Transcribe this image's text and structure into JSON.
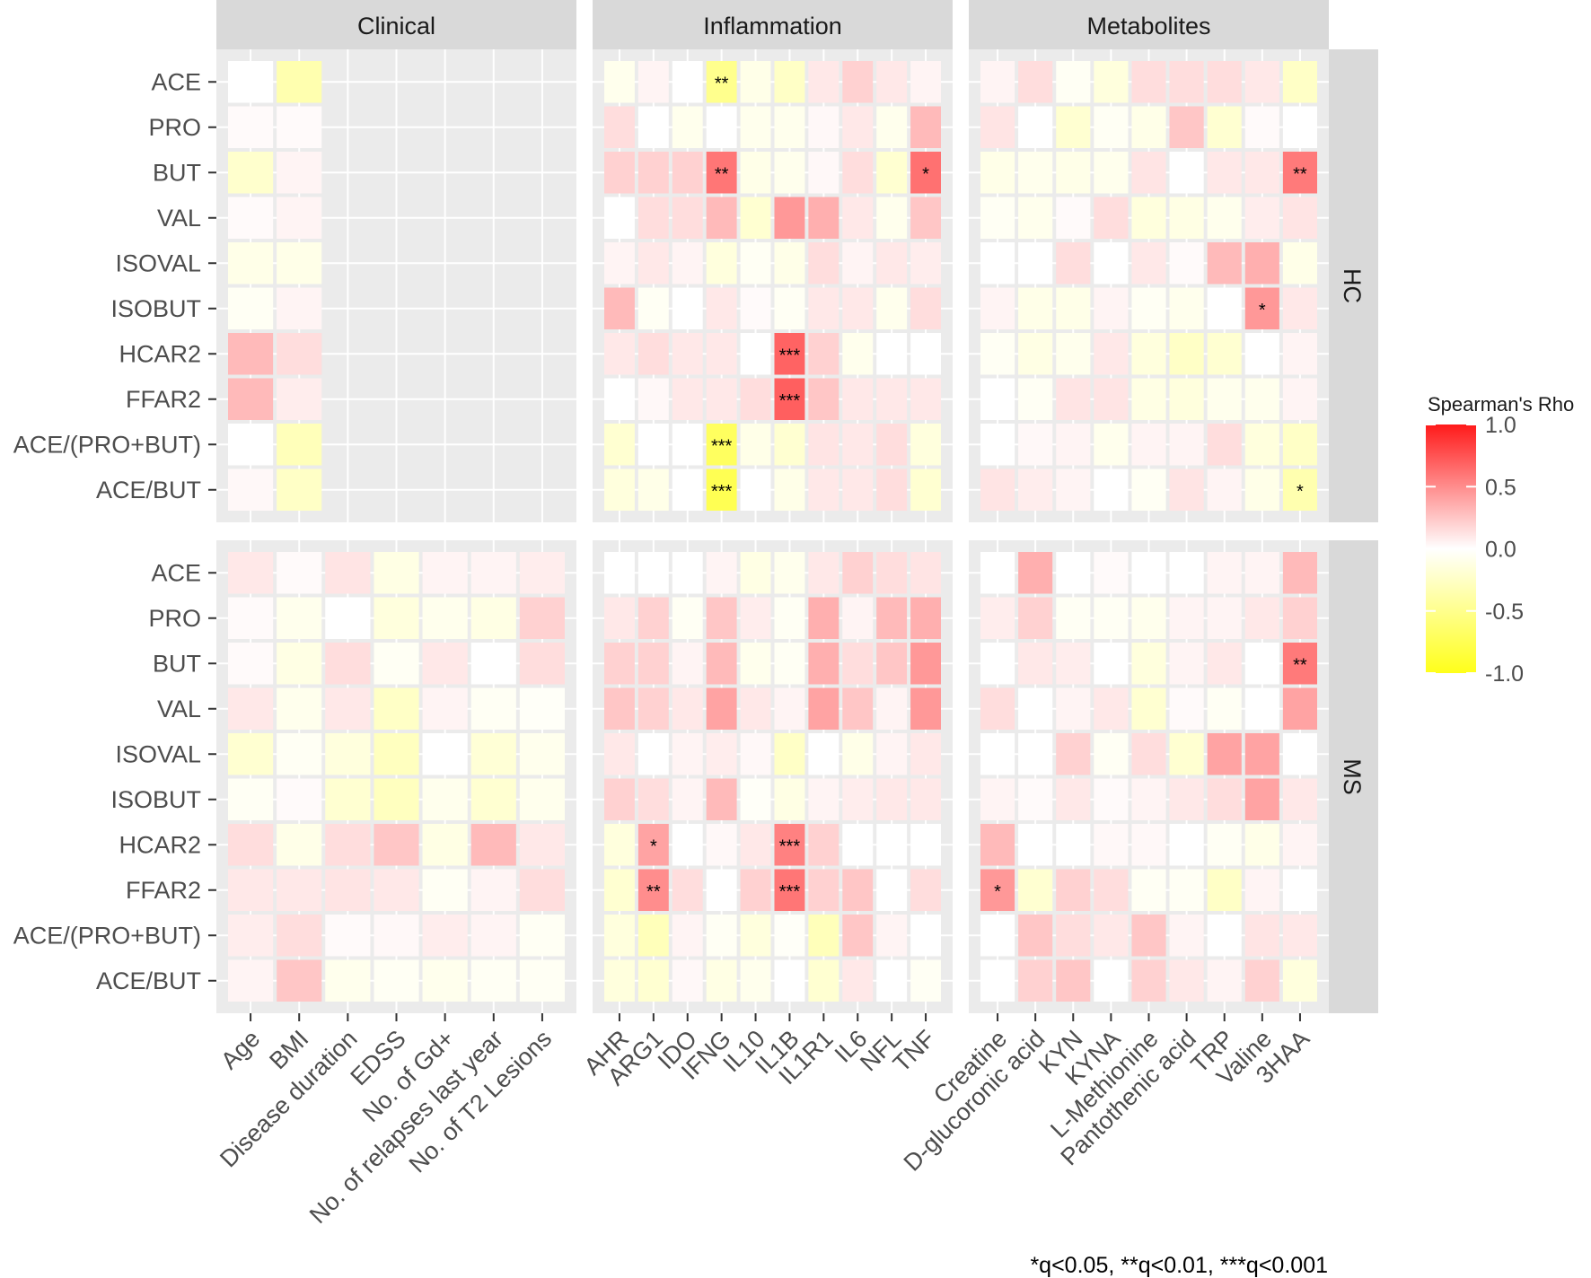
{
  "chart_data": {
    "type": "heatmap",
    "legend": {
      "title": "Spearman's Rho",
      "ticks": [
        "1.0",
        "0.5",
        "0.0",
        "-0.5",
        "-1.0"
      ],
      "tick_values": [
        1.0,
        0.5,
        0.0,
        -0.5,
        -1.0
      ],
      "range": [
        -1.0,
        1.0
      ],
      "colors": {
        "low": "#ffff1a",
        "mid": "#ffffff",
        "high": "#ff1a1a"
      },
      "placement": "right"
    },
    "caption": "*q<0.05, **q<0.01, ***q<0.001",
    "rows": [
      "ACE",
      "PRO",
      "BUT",
      "VAL",
      "ISOVAL",
      "ISOBUT",
      "HCAR2",
      "FFAR2",
      "ACE/(PRO+BUT)",
      "ACE/BUT"
    ],
    "row_panels": [
      "HC",
      "MS"
    ],
    "col_panels": [
      {
        "name": "Clinical",
        "columns": [
          "Age",
          "BMI",
          "Disease duration",
          "EDSS",
          "No. of Gd+",
          "No. of relapses last year",
          "No. of T2 Lesions"
        ]
      },
      {
        "name": "Inflammation",
        "columns": [
          "AHR",
          "ARG1",
          "IDO",
          "IFNG",
          "IL10",
          "IL1B",
          "IL1R1",
          "IL6",
          "NFL",
          "TNF"
        ]
      },
      {
        "name": "Metabolites",
        "columns": [
          "Creatine",
          "D-glucoronic acid",
          "KYN",
          "KYNA",
          "L-Methionine",
          "Pantothenic acid",
          "TRP",
          "Valine",
          "3HAA"
        ]
      }
    ],
    "values": {
      "HC": {
        "Clinical": [
          [
            0.0,
            -0.35,
            null,
            null,
            null,
            null,
            null
          ],
          [
            0.02,
            0.02,
            null,
            null,
            null,
            null,
            null
          ],
          [
            -0.22,
            0.05,
            null,
            null,
            null,
            null,
            null
          ],
          [
            0.02,
            0.05,
            null,
            null,
            null,
            null,
            null
          ],
          [
            -0.1,
            -0.1,
            null,
            null,
            null,
            null,
            null
          ],
          [
            -0.05,
            0.05,
            null,
            null,
            null,
            null,
            null
          ],
          [
            0.3,
            0.15,
            null,
            null,
            null,
            null,
            null
          ],
          [
            0.3,
            0.08,
            null,
            null,
            null,
            null,
            null
          ],
          [
            0.0,
            -0.3,
            null,
            null,
            null,
            null,
            null
          ],
          [
            0.03,
            -0.25,
            null,
            null,
            null,
            null,
            null
          ]
        ],
        "Inflammation": [
          [
            -0.08,
            0.05,
            0.0,
            -0.5,
            -0.1,
            -0.25,
            0.1,
            0.2,
            0.1,
            0.05
          ],
          [
            0.15,
            0.0,
            -0.08,
            0.0,
            -0.08,
            -0.08,
            0.03,
            0.1,
            -0.08,
            0.3
          ],
          [
            0.2,
            0.2,
            0.2,
            0.6,
            -0.1,
            -0.08,
            0.03,
            0.15,
            -0.2,
            0.62
          ],
          [
            0.0,
            0.15,
            0.15,
            0.3,
            -0.2,
            0.45,
            0.35,
            0.1,
            -0.08,
            0.25
          ],
          [
            0.05,
            0.1,
            0.05,
            -0.15,
            -0.05,
            -0.1,
            0.15,
            0.05,
            0.1,
            0.08
          ],
          [
            0.3,
            -0.05,
            0.0,
            0.1,
            0.02,
            -0.05,
            0.1,
            0.1,
            -0.08,
            0.15
          ],
          [
            0.1,
            0.15,
            0.1,
            0.1,
            0.0,
            0.68,
            0.2,
            -0.08,
            0.0,
            0.0
          ],
          [
            0.0,
            0.03,
            0.1,
            0.1,
            0.15,
            0.7,
            0.25,
            0.1,
            0.1,
            0.1
          ],
          [
            -0.2,
            0.0,
            0.0,
            -0.7,
            -0.1,
            -0.2,
            0.12,
            0.1,
            0.15,
            -0.15
          ],
          [
            -0.15,
            -0.1,
            0.0,
            -0.75,
            0.0,
            -0.1,
            0.1,
            0.1,
            0.15,
            -0.2
          ]
        ],
        "Metabolites": [
          [
            0.05,
            0.15,
            -0.05,
            -0.15,
            0.15,
            0.15,
            0.15,
            0.1,
            -0.25
          ],
          [
            0.12,
            0.0,
            -0.2,
            -0.05,
            -0.1,
            0.25,
            -0.2,
            0.02,
            0.0
          ],
          [
            -0.1,
            -0.08,
            -0.1,
            -0.08,
            0.12,
            0.0,
            0.1,
            0.1,
            0.58
          ],
          [
            -0.05,
            -0.08,
            0.02,
            0.15,
            -0.15,
            -0.12,
            -0.08,
            0.08,
            0.12
          ],
          [
            0.0,
            0.0,
            0.15,
            0.0,
            0.1,
            0.02,
            0.3,
            0.35,
            -0.1
          ],
          [
            0.05,
            -0.1,
            -0.1,
            0.05,
            -0.05,
            -0.08,
            0.0,
            0.45,
            0.1
          ],
          [
            -0.05,
            -0.12,
            -0.08,
            0.1,
            -0.15,
            -0.25,
            -0.2,
            0.0,
            0.05
          ],
          [
            0.0,
            -0.05,
            0.12,
            0.12,
            -0.12,
            -0.15,
            -0.08,
            -0.08,
            0.05
          ],
          [
            0.0,
            0.03,
            0.05,
            -0.08,
            0.05,
            0.05,
            0.15,
            -0.15,
            -0.25
          ],
          [
            0.12,
            0.08,
            0.05,
            0.0,
            -0.05,
            0.12,
            0.05,
            -0.1,
            -0.35
          ]
        ]
      },
      "MS": {
        "Clinical": [
          [
            0.1,
            0.02,
            0.12,
            -0.12,
            0.05,
            0.05,
            0.08
          ],
          [
            0.02,
            -0.08,
            0.0,
            -0.15,
            -0.08,
            -0.12,
            0.2
          ],
          [
            0.02,
            -0.12,
            0.15,
            -0.05,
            0.1,
            0.0,
            0.15
          ],
          [
            0.1,
            -0.08,
            0.1,
            -0.25,
            0.05,
            -0.05,
            -0.03
          ],
          [
            -0.2,
            -0.05,
            -0.15,
            -0.28,
            0.0,
            -0.18,
            -0.08
          ],
          [
            -0.05,
            0.02,
            -0.2,
            -0.28,
            -0.08,
            -0.2,
            -0.08
          ],
          [
            0.15,
            -0.1,
            0.15,
            0.25,
            -0.12,
            0.3,
            0.1
          ],
          [
            0.1,
            0.1,
            0.12,
            0.1,
            -0.05,
            0.05,
            0.15
          ],
          [
            0.08,
            0.15,
            0.02,
            0.03,
            0.08,
            0.05,
            -0.05
          ],
          [
            0.05,
            0.25,
            -0.08,
            -0.05,
            -0.08,
            -0.05,
            -0.05
          ]
        ],
        "Inflammation": [
          [
            0.0,
            0.0,
            0.0,
            0.05,
            -0.12,
            -0.08,
            0.1,
            0.2,
            0.15,
            0.12
          ],
          [
            0.1,
            0.2,
            -0.05,
            0.25,
            0.08,
            -0.05,
            0.35,
            0.05,
            0.3,
            0.35
          ],
          [
            0.2,
            0.2,
            0.05,
            0.3,
            -0.08,
            -0.05,
            0.35,
            0.15,
            0.25,
            0.45
          ],
          [
            0.25,
            0.2,
            0.1,
            0.4,
            0.1,
            0.05,
            0.4,
            0.25,
            0.05,
            0.45
          ],
          [
            0.1,
            0.0,
            0.05,
            0.08,
            0.03,
            -0.25,
            0.0,
            -0.1,
            0.05,
            0.1
          ],
          [
            0.2,
            0.15,
            0.05,
            0.3,
            -0.03,
            -0.12,
            0.05,
            0.08,
            0.1,
            0.1
          ],
          [
            -0.15,
            0.4,
            0.0,
            0.03,
            0.1,
            0.55,
            0.2,
            0.0,
            0.0,
            0.0
          ],
          [
            -0.2,
            0.5,
            0.15,
            0.0,
            0.2,
            0.6,
            0.2,
            0.25,
            0.0,
            0.15
          ],
          [
            -0.15,
            -0.3,
            0.05,
            -0.05,
            -0.15,
            -0.03,
            -0.3,
            0.25,
            0.05,
            0.0
          ],
          [
            -0.15,
            -0.2,
            0.03,
            -0.12,
            -0.08,
            0.0,
            -0.2,
            0.1,
            0.0,
            -0.05
          ]
        ],
        "Metabolites": [
          [
            0.0,
            0.35,
            0.0,
            0.02,
            0.0,
            0.0,
            0.05,
            0.05,
            0.3
          ],
          [
            0.08,
            0.2,
            -0.05,
            -0.05,
            -0.08,
            0.05,
            0.05,
            0.1,
            0.2
          ],
          [
            0.0,
            0.1,
            0.08,
            0.0,
            -0.15,
            0.05,
            0.1,
            0.0,
            0.58
          ],
          [
            0.15,
            0.0,
            0.05,
            0.1,
            -0.2,
            0.02,
            -0.05,
            0.0,
            0.4
          ],
          [
            0.0,
            0.0,
            0.2,
            -0.05,
            0.15,
            -0.2,
            0.4,
            0.4,
            0.0
          ],
          [
            0.05,
            0.02,
            0.1,
            0.02,
            0.05,
            0.1,
            0.15,
            0.4,
            0.1
          ],
          [
            0.3,
            0.0,
            0.0,
            0.03,
            0.03,
            0.0,
            -0.05,
            -0.1,
            0.05
          ],
          [
            0.45,
            -0.2,
            0.2,
            0.15,
            -0.05,
            -0.05,
            -0.25,
            0.05,
            0.0
          ],
          [
            0.0,
            0.25,
            0.15,
            0.1,
            0.25,
            0.05,
            0.0,
            0.12,
            0.1
          ],
          [
            0.0,
            0.2,
            0.25,
            0.0,
            0.2,
            0.1,
            0.05,
            0.2,
            -0.15
          ]
        ]
      }
    },
    "significance": [
      {
        "panel": "HC",
        "group": "Inflammation",
        "row": "ACE",
        "col": "IFNG",
        "mark": "**"
      },
      {
        "panel": "HC",
        "group": "Inflammation",
        "row": "BUT",
        "col": "IFNG",
        "mark": "**"
      },
      {
        "panel": "HC",
        "group": "Inflammation",
        "row": "BUT",
        "col": "TNF",
        "mark": "*"
      },
      {
        "panel": "HC",
        "group": "Metabolites",
        "row": "BUT",
        "col": "3HAA",
        "mark": "**"
      },
      {
        "panel": "HC",
        "group": "Metabolites",
        "row": "ISOBUT",
        "col": "Valine",
        "mark": "*"
      },
      {
        "panel": "HC",
        "group": "Inflammation",
        "row": "HCAR2",
        "col": "IL1B",
        "mark": "***"
      },
      {
        "panel": "HC",
        "group": "Inflammation",
        "row": "FFAR2",
        "col": "IL1B",
        "mark": "***"
      },
      {
        "panel": "HC",
        "group": "Inflammation",
        "row": "ACE/(PRO+BUT)",
        "col": "IFNG",
        "mark": "***"
      },
      {
        "panel": "HC",
        "group": "Inflammation",
        "row": "ACE/BUT",
        "col": "IFNG",
        "mark": "***"
      },
      {
        "panel": "HC",
        "group": "Metabolites",
        "row": "ACE/BUT",
        "col": "3HAA",
        "mark": "*"
      },
      {
        "panel": "MS",
        "group": "Metabolites",
        "row": "BUT",
        "col": "3HAA",
        "mark": "**"
      },
      {
        "panel": "MS",
        "group": "Inflammation",
        "row": "HCAR2",
        "col": "ARG1",
        "mark": "*"
      },
      {
        "panel": "MS",
        "group": "Inflammation",
        "row": "HCAR2",
        "col": "IL1B",
        "mark": "***"
      },
      {
        "panel": "MS",
        "group": "Inflammation",
        "row": "FFAR2",
        "col": "ARG1",
        "mark": "**"
      },
      {
        "panel": "MS",
        "group": "Inflammation",
        "row": "FFAR2",
        "col": "IL1B",
        "mark": "***"
      },
      {
        "panel": "MS",
        "group": "Metabolites",
        "row": "FFAR2",
        "col": "Creatine",
        "mark": "*"
      }
    ]
  }
}
